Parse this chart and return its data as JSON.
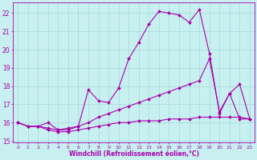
{
  "xlabel": "Windchill (Refroidissement éolien,°C)",
  "background_color": "#c8f0f0",
  "grid_color": "#aadddd",
  "line_color": "#aa00aa",
  "xlim": [
    -0.5,
    23.5
  ],
  "ylim": [
    14.9,
    22.6
  ],
  "yticks": [
    15,
    16,
    17,
    18,
    19,
    20,
    21,
    22
  ],
  "xticks": [
    0,
    1,
    2,
    3,
    4,
    5,
    6,
    7,
    8,
    9,
    10,
    11,
    12,
    13,
    14,
    15,
    16,
    17,
    18,
    19,
    20,
    21,
    22,
    23
  ],
  "series": [
    {
      "x": [
        0,
        1,
        2,
        3,
        4,
        5,
        6,
        7,
        8,
        9,
        10,
        11,
        12,
        13,
        14,
        15,
        16,
        17,
        18,
        19,
        20,
        21,
        22,
        23
      ],
      "y": [
        16.0,
        15.8,
        15.8,
        16.0,
        15.6,
        15.6,
        15.8,
        17.8,
        17.2,
        17.1,
        17.9,
        19.5,
        20.4,
        21.4,
        22.1,
        22.0,
        21.9,
        21.5,
        22.2,
        19.8,
        16.5,
        17.6,
        18.1,
        16.2
      ]
    },
    {
      "x": [
        0,
        1,
        2,
        3,
        4,
        5,
        6,
        7,
        8,
        9,
        10,
        11,
        12,
        13,
        14,
        15,
        16,
        17,
        18,
        19,
        20,
        21,
        22,
        23
      ],
      "y": [
        16.0,
        15.8,
        15.8,
        15.7,
        15.6,
        15.7,
        15.8,
        16.0,
        16.3,
        16.5,
        16.7,
        16.9,
        17.1,
        17.3,
        17.5,
        17.7,
        17.9,
        18.1,
        18.3,
        19.5,
        16.6,
        17.6,
        16.2,
        16.2
      ]
    },
    {
      "x": [
        0,
        1,
        2,
        3,
        4,
        5,
        6,
        7,
        8,
        9,
        10,
        11,
        12,
        13,
        14,
        15,
        16,
        17,
        18,
        19,
        20,
        21,
        22,
        23
      ],
      "y": [
        16.0,
        15.8,
        15.8,
        15.6,
        15.5,
        15.5,
        15.6,
        15.7,
        15.8,
        15.9,
        16.0,
        16.0,
        16.1,
        16.1,
        16.1,
        16.2,
        16.2,
        16.2,
        16.3,
        16.3,
        16.3,
        16.3,
        16.3,
        16.2
      ]
    }
  ]
}
